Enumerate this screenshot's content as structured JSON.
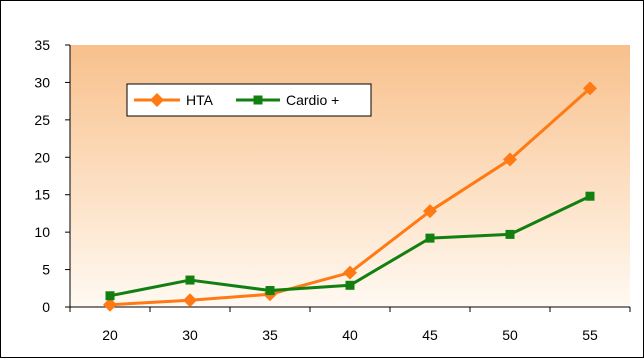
{
  "chart_data": {
    "type": "line",
    "title": "",
    "xlabel": "",
    "ylabel": "",
    "categories": [
      "20",
      "30",
      "35",
      "40",
      "45",
      "50",
      "55"
    ],
    "ylim": [
      0,
      35
    ],
    "yticks": [
      0,
      5,
      10,
      15,
      20,
      25,
      30,
      35
    ],
    "grid": false,
    "legend_position": "top-left",
    "background": "gradient",
    "series": [
      {
        "name": "HTA",
        "marker": "diamond",
        "color": "#ff7a14",
        "values": [
          0.3,
          0.9,
          1.7,
          4.6,
          12.8,
          19.7,
          29.2
        ]
      },
      {
        "name": "Cardio +",
        "marker": "square",
        "color": "#118011",
        "values": [
          1.5,
          3.6,
          2.2,
          2.9,
          9.2,
          9.7,
          14.8
        ]
      }
    ]
  }
}
